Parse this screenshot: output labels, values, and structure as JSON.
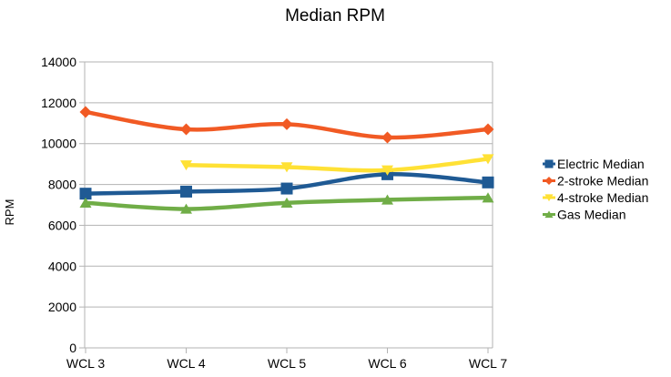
{
  "chart_data": {
    "type": "line",
    "title": "Median RPM",
    "xlabel": "",
    "ylabel": "RPM",
    "ylim": [
      0,
      14000
    ],
    "ytick_step": 2000,
    "grid": "horizontal major gridlines",
    "legend_position": "right",
    "smooth": true,
    "categories": [
      "WCL 3",
      "WCL 4",
      "WCL 5",
      "WCL 6",
      "WCL 7"
    ],
    "series": [
      {
        "name": "Electric Median",
        "values": [
          7550,
          7650,
          7800,
          8500,
          8100
        ],
        "color": "#1F5A94",
        "marker": "square"
      },
      {
        "name": "2-stroke Median",
        "values": [
          11550,
          10700,
          10950,
          10300,
          10700
        ],
        "color": "#F15A24",
        "marker": "diamond"
      },
      {
        "name": "4-stroke Median",
        "values": [
          null,
          8950,
          8850,
          8700,
          9250
        ],
        "color": "#FFE135",
        "marker": "triangle-down"
      },
      {
        "name": "Gas Median",
        "values": [
          7100,
          6800,
          7100,
          7250,
          7350
        ],
        "color": "#70AD47",
        "marker": "triangle-up"
      }
    ]
  }
}
